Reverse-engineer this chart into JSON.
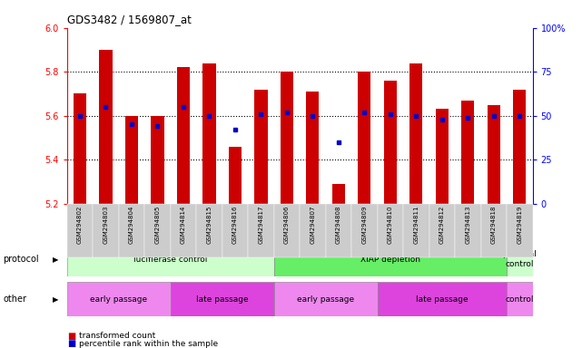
{
  "title": "GDS3482 / 1569807_at",
  "samples": [
    "GSM294802",
    "GSM294803",
    "GSM294804",
    "GSM294805",
    "GSM294814",
    "GSM294815",
    "GSM294816",
    "GSM294817",
    "GSM294806",
    "GSM294807",
    "GSM294808",
    "GSM294809",
    "GSM294810",
    "GSM294811",
    "GSM294812",
    "GSM294813",
    "GSM294818",
    "GSM294819"
  ],
  "transformed_count": [
    5.7,
    5.9,
    5.6,
    5.6,
    5.82,
    5.84,
    5.46,
    5.72,
    5.8,
    5.71,
    5.29,
    5.8,
    5.76,
    5.84,
    5.63,
    5.67,
    5.65,
    5.72
  ],
  "percentile_rank": [
    50,
    55,
    45,
    44,
    55,
    50,
    42,
    51,
    52,
    50,
    35,
    52,
    51,
    50,
    48,
    49,
    50,
    50
  ],
  "ylim": [
    5.2,
    6.0
  ],
  "yticks_left": [
    5.2,
    5.4,
    5.6,
    5.8,
    6.0
  ],
  "yticks_right_vals": [
    0,
    25,
    50,
    75,
    100
  ],
  "yticks_right_labels": [
    "0",
    "25",
    "50",
    "75",
    "100%"
  ],
  "bar_color": "#cc0000",
  "dot_color": "#0000cc",
  "bg_color": "#ffffff",
  "plot_bg": "#ffffff",
  "tick_label_bg": "#cccccc",
  "protocol_groups": [
    {
      "label": "lucifierase control",
      "start": 0,
      "end": 8,
      "color": "#ccffcc"
    },
    {
      "label": "XIAP depletion",
      "start": 8,
      "end": 17,
      "color": "#66ee66"
    },
    {
      "label": "parental\ncontrol",
      "start": 17,
      "end": 18,
      "color": "#ccffcc"
    }
  ],
  "other_groups": [
    {
      "label": "early passage",
      "start": 0,
      "end": 4,
      "color": "#ee88ee"
    },
    {
      "label": "late passage",
      "start": 4,
      "end": 8,
      "color": "#dd44dd"
    },
    {
      "label": "early passage",
      "start": 8,
      "end": 12,
      "color": "#ee88ee"
    },
    {
      "label": "late passage",
      "start": 12,
      "end": 17,
      "color": "#dd44dd"
    },
    {
      "label": "control",
      "start": 17,
      "end": 18,
      "color": "#ee88ee"
    }
  ],
  "xlabel_protocol": "protocol",
  "xlabel_other": "other"
}
